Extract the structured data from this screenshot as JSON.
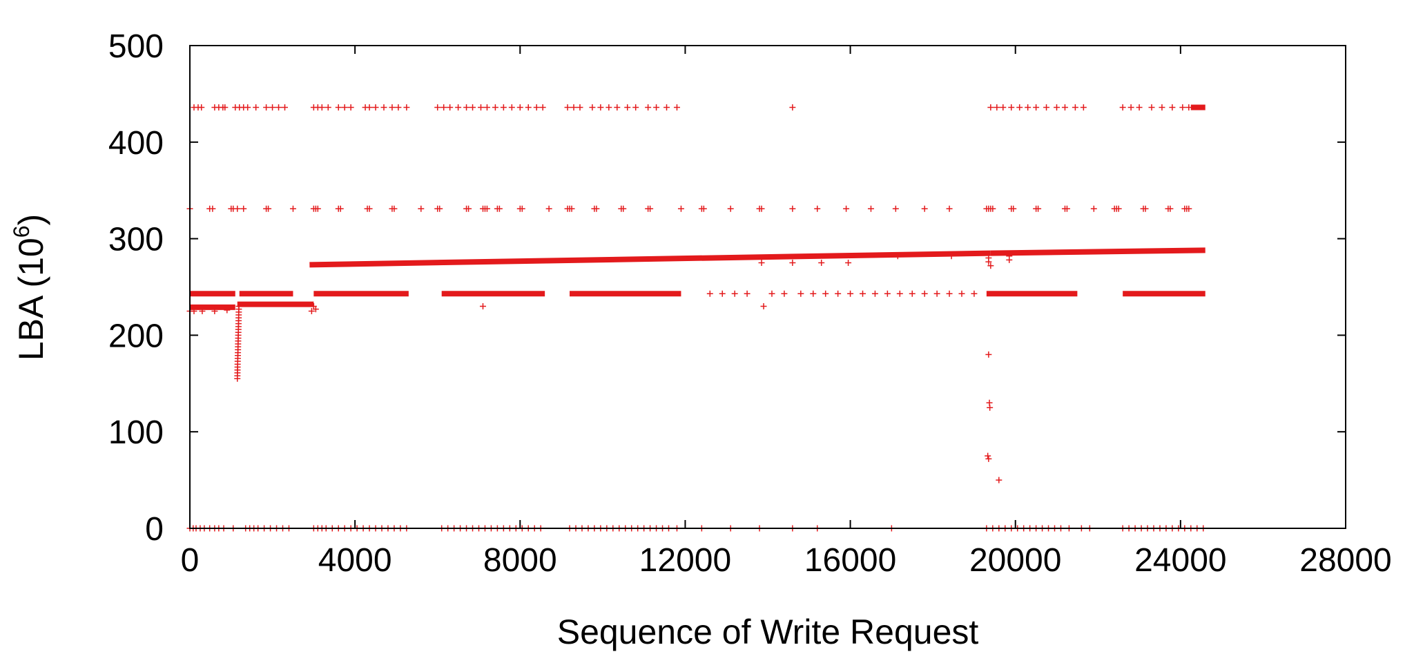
{
  "chart_data": {
    "type": "scatter",
    "title": "",
    "xlabel": "Sequence of Write Request",
    "ylabel_prefix": "LBA (10",
    "ylabel_exp": "6",
    "ylabel_suffix": ")",
    "xlim": [
      0,
      28000
    ],
    "ylim": [
      0,
      500
    ],
    "xticks": [
      "0",
      "4000",
      "8000",
      "12000",
      "16000",
      "20000",
      "24000",
      "28000"
    ],
    "yticks": [
      "0",
      "100",
      "200",
      "300",
      "400",
      "500"
    ],
    "grid": false,
    "legend": "none",
    "marker": "+",
    "color": "#e31a1c",
    "series": [
      {
        "dense_bands": [
          {
            "y": 229,
            "x": [
              0,
              1100
            ]
          },
          {
            "y": 232,
            "x": [
              1150,
              3000
            ]
          },
          {
            "y": 243,
            "x": [
              0,
              1100
            ]
          },
          {
            "y": 243,
            "x": [
              1200,
              2500
            ]
          },
          {
            "y": 243,
            "x": [
              3000,
              5300
            ]
          },
          {
            "y": 243,
            "x": [
              6100,
              8600
            ]
          },
          {
            "y": 243,
            "x": [
              9200,
              11900
            ]
          },
          {
            "y": 243,
            "x": [
              19300,
              21500
            ]
          },
          {
            "y": 243,
            "x": [
              22600,
              24600
            ]
          },
          {
            "y": 436,
            "x": [
              24250,
              24600
            ]
          }
        ],
        "trend_bands": [
          {
            "x": [
              2900,
              19400
            ],
            "y": [
              273,
              285
            ]
          },
          {
            "x": [
              19400,
              24600
            ],
            "y": [
              285,
              288
            ]
          }
        ],
        "sparse_rows": [
          {
            "y": 0,
            "x": [
              0,
              80,
              150,
              250,
              350,
              480,
              600,
              700,
              820,
              1050,
              1350,
              1450,
              1550,
              1650,
              1800,
              1950,
              2100,
              2250,
              2400,
              3000,
              3100,
              3200,
              3300,
              3450,
              3600,
              3750,
              3900,
              4050,
              4200,
              4350,
              4500,
              4650,
              4800,
              4950,
              5100,
              5250,
              6100,
              6250,
              6400,
              6550,
              6700,
              6850,
              7000,
              7150,
              7300,
              7450,
              7600,
              7750,
              7900,
              8050,
              8200,
              8350,
              8500,
              9200,
              9350,
              9500,
              9650,
              9800,
              9950,
              10100,
              10250,
              10400,
              10550,
              10700,
              10850,
              11000,
              11150,
              11300,
              11450,
              11600,
              11800,
              12400,
              13100,
              13800,
              14600,
              15200,
              17000,
              19300,
              19450,
              19600,
              19750,
              19900,
              20050,
              20200,
              20350,
              20500,
              20650,
              20800,
              20950,
              21100,
              21300,
              21600,
              21800,
              22600,
              22750,
              22900,
              23050,
              23200,
              23350,
              23500,
              23650,
              23800,
              23950,
              24100,
              24250,
              24400,
              24550
            ]
          },
          {
            "y": 331,
            "x": [
              0,
              480,
              550,
              1000,
              1050,
              1150,
              1300,
              1850,
              1900,
              2500,
              3000,
              3050,
              3100,
              3600,
              3650,
              4300,
              4350,
              4900,
              4950,
              5600,
              6000,
              6050,
              6700,
              6750,
              7100,
              7150,
              7200,
              7450,
              7500,
              8000,
              8050,
              8700,
              9150,
              9200,
              9250,
              9800,
              9850,
              10450,
              10500,
              11100,
              11150,
              11900,
              12400,
              12450,
              13100,
              13800,
              13850,
              14600,
              15200,
              15900,
              16500,
              17100,
              17800,
              18400,
              19300,
              19350,
              19400,
              19450,
              19900,
              19950,
              20500,
              20550,
              21200,
              21250,
              21900,
              22400,
              22450,
              22500,
              23100,
              23150,
              23700,
              23750,
              24100,
              24150,
              24200
            ]
          },
          {
            "y": 436,
            "x": [
              100,
              200,
              280,
              600,
              700,
              800,
              850,
              1100,
              1200,
              1300,
              1400,
              1600,
              1850,
              2000,
              2150,
              2300,
              3000,
              3100,
              3200,
              3350,
              3600,
              3750,
              3900,
              4250,
              4350,
              4500,
              4700,
              4900,
              5050,
              5250,
              6000,
              6150,
              6300,
              6500,
              6700,
              6850,
              7050,
              7200,
              7400,
              7600,
              7800,
              8000,
              8200,
              8400,
              8550,
              9150,
              9300,
              9450,
              9750,
              9950,
              10150,
              10350,
              10600,
              10800,
              11100,
              11300,
              11550,
              11800,
              14600,
              19400,
              19550,
              19700,
              19900,
              20100,
              20300,
              20500,
              20750,
              21000,
              21200,
              21450,
              21650,
              22600,
              22800,
              23000,
              23300,
              23550,
              23800,
              24050,
              24200
            ]
          },
          {
            "y": 243,
            "x": [
              12600,
              12900,
              13200,
              13500,
              14100,
              14400,
              14800,
              15100,
              15400,
              15700,
              16000,
              16300,
              16600,
              16900,
              17200,
              17500,
              17800,
              18100,
              18400,
              18700,
              19000
            ]
          }
        ],
        "isolated_points": [
          [
            0,
            225
          ],
          [
            100,
            225
          ],
          [
            300,
            225
          ],
          [
            600,
            225
          ],
          [
            900,
            226
          ],
          [
            2950,
            225
          ],
          [
            3000,
            230
          ],
          [
            3050,
            227
          ],
          [
            7100,
            230
          ],
          [
            13900,
            230
          ],
          [
            13850,
            275
          ],
          [
            14600,
            275
          ],
          [
            15300,
            275
          ],
          [
            15950,
            275
          ],
          [
            17150,
            282
          ],
          [
            18450,
            282
          ],
          [
            19850,
            278
          ],
          [
            19850,
            282
          ],
          [
            19350,
            280
          ],
          [
            19350,
            276
          ],
          [
            19400,
            272
          ],
          [
            19350,
            180
          ],
          [
            19370,
            130
          ],
          [
            19380,
            125
          ],
          [
            19330,
            75
          ],
          [
            19350,
            72
          ],
          [
            19600,
            50
          ]
        ],
        "vertical_spike": {
          "x": 1150,
          "y": [
            155,
            232
          ]
        }
      }
    ]
  }
}
